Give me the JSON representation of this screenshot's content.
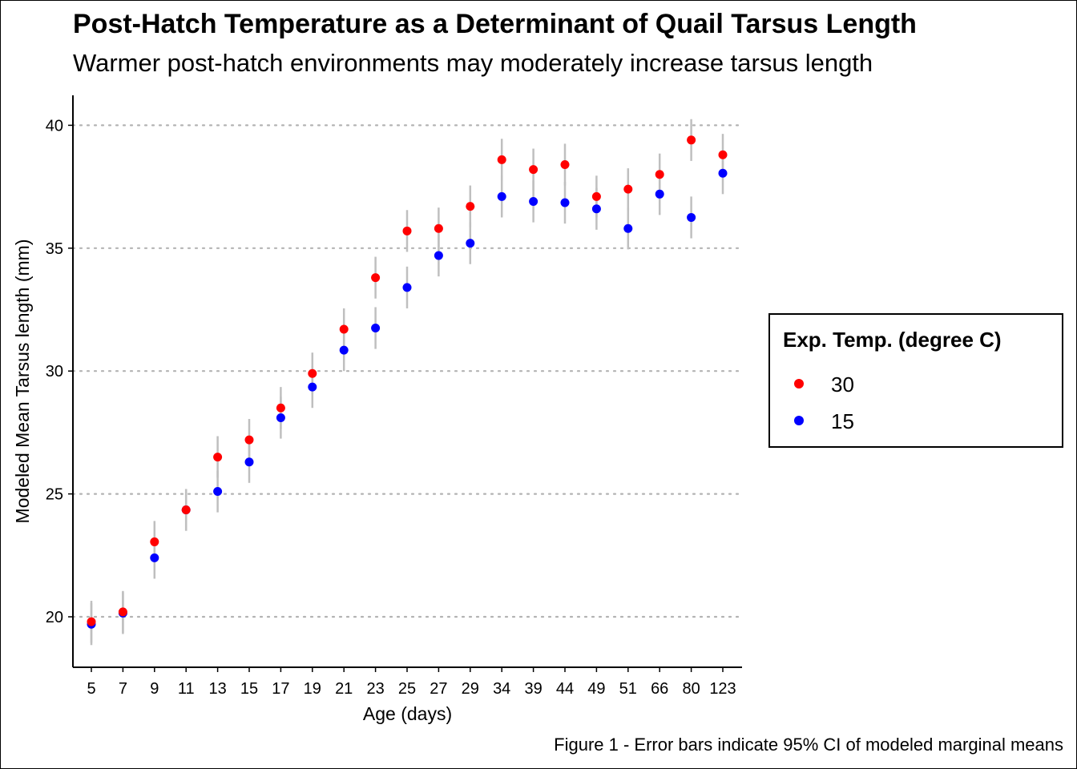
{
  "title": "Post-Hatch Temperature as a Determinant of Quail Tarsus Length",
  "subtitle": "Warmer post-hatch environments may moderately increase tarsus length",
  "caption": "Figure 1 - Error bars indicate 95% CI of modeled marginal means",
  "legend": {
    "title": "Exp. Temp. (degree C)",
    "items": [
      {
        "label": "30",
        "color": "#ff0000"
      },
      {
        "label": "15",
        "color": "#0000ff"
      }
    ]
  },
  "chart_data": {
    "type": "scatter",
    "title": "Post-Hatch Temperature as a Determinant of Quail Tarsus Length",
    "subtitle": "Warmer post-hatch environments may moderately increase tarsus length",
    "xlabel": "Age (days)",
    "ylabel": "Modeled Mean Tarsus length (mm)",
    "x_type": "categorical",
    "categories": [
      "5",
      "7",
      "9",
      "11",
      "13",
      "15",
      "17",
      "19",
      "21",
      "23",
      "25",
      "27",
      "29",
      "34",
      "39",
      "44",
      "49",
      "51",
      "66",
      "80",
      "123"
    ],
    "ylim": [
      18.0,
      41.2
    ],
    "yticks": [
      20,
      25,
      30,
      35,
      40
    ],
    "grid": "horizontal dotted major",
    "legend_position": "right",
    "ci_halfwidth": 0.85,
    "series": [
      {
        "name": "30",
        "color": "#ff0000",
        "values": [
          19.8,
          20.2,
          23.05,
          24.35,
          26.5,
          27.2,
          28.5,
          29.9,
          31.7,
          33.8,
          35.7,
          35.8,
          36.7,
          38.6,
          38.2,
          38.4,
          37.1,
          37.4,
          38.0,
          39.4,
          38.8
        ]
      },
      {
        "name": "15",
        "color": "#0000ff",
        "values": [
          19.7,
          20.15,
          22.4,
          24.35,
          25.1,
          26.3,
          28.1,
          29.35,
          30.85,
          31.75,
          33.4,
          34.7,
          35.2,
          37.1,
          36.9,
          36.85,
          36.6,
          35.8,
          37.2,
          36.25,
          38.05
        ]
      }
    ]
  }
}
